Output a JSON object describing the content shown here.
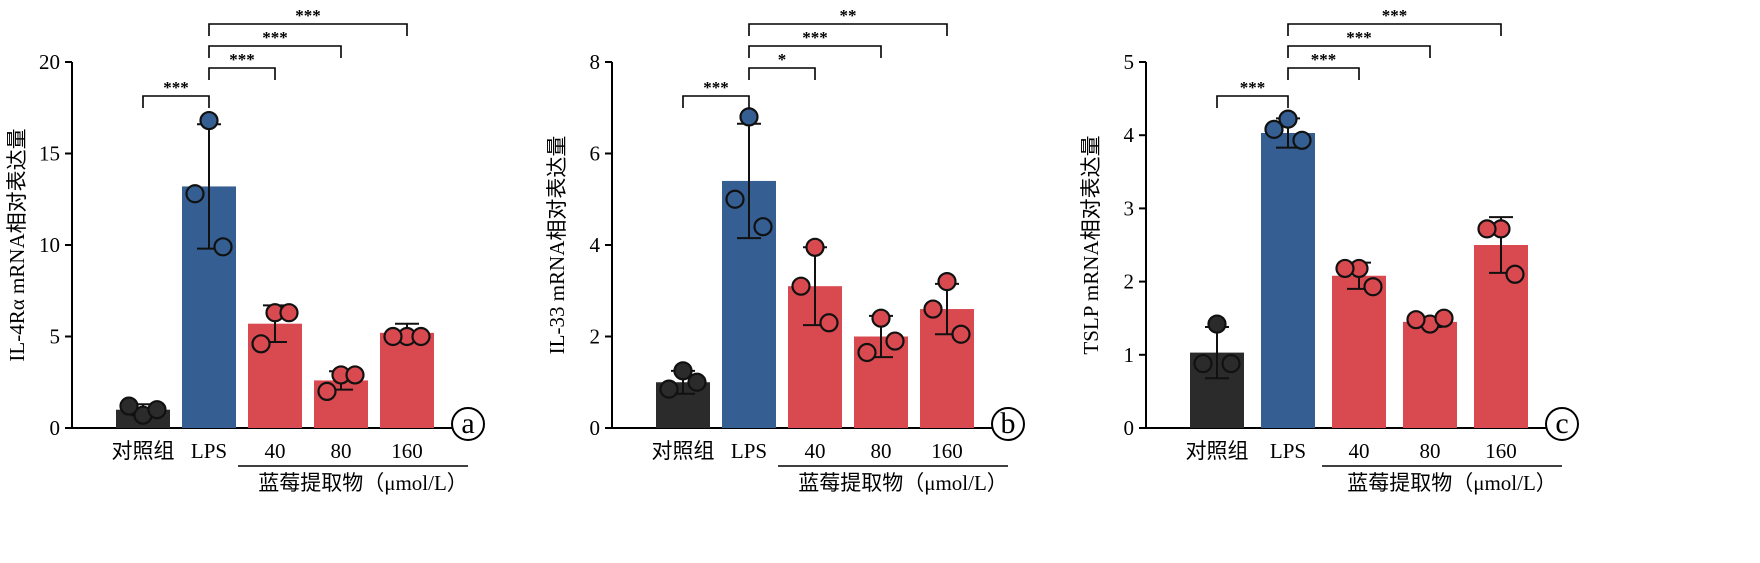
{
  "colors": {
    "control": "#2b2b2b",
    "lps": "#355f93",
    "extract": "#d94a50"
  },
  "group_label": "蓝莓提取物（μmol/L）",
  "chart_data": [
    {
      "type": "bar",
      "panel": "a",
      "ylabel": "IL-4Rα  mRNA相对表达量",
      "ylim": [
        0,
        20
      ],
      "yticks": [
        0,
        5,
        10,
        15,
        20
      ],
      "categories": [
        "对照组",
        "LPS",
        "40",
        "80",
        "160"
      ],
      "values": [
        1.0,
        13.2,
        5.7,
        2.6,
        5.2
      ],
      "errors": [
        0.3,
        3.4,
        1.0,
        0.5,
        0.5
      ],
      "points": [
        [
          0.7,
          1.2,
          1.0
        ],
        [
          16.8,
          12.8,
          9.9
        ],
        [
          6.3,
          4.6,
          6.3
        ],
        [
          2.9,
          2.0,
          2.9
        ],
        [
          5.0,
          5.0,
          5.0
        ]
      ],
      "bar_colors": [
        "control",
        "lps",
        "extract",
        "extract",
        "extract"
      ],
      "brackets": [
        {
          "from": 0,
          "to": 1,
          "label": "***"
        },
        {
          "from": 1,
          "to": 2,
          "label": "***"
        },
        {
          "from": 1,
          "to": 3,
          "label": "***"
        },
        {
          "from": 1,
          "to": 4,
          "label": "***"
        }
      ]
    },
    {
      "type": "bar",
      "panel": "b",
      "ylabel": "IL-33  mRNA相对表达量",
      "ylim": [
        0,
        8
      ],
      "yticks": [
        0,
        2,
        4,
        6,
        8
      ],
      "categories": [
        "对照组",
        "LPS",
        "40",
        "80",
        "160"
      ],
      "values": [
        1.0,
        5.4,
        3.1,
        2.0,
        2.6
      ],
      "errors": [
        0.25,
        1.25,
        0.85,
        0.45,
        0.55
      ],
      "points": [
        [
          1.25,
          0.85,
          1.0
        ],
        [
          6.8,
          5.0,
          4.4
        ],
        [
          3.95,
          3.1,
          2.3
        ],
        [
          2.4,
          1.65,
          1.9
        ],
        [
          3.2,
          2.6,
          2.05
        ]
      ],
      "bar_colors": [
        "control",
        "lps",
        "extract",
        "extract",
        "extract"
      ],
      "brackets": [
        {
          "from": 0,
          "to": 1,
          "label": "***"
        },
        {
          "from": 1,
          "to": 2,
          "label": "*"
        },
        {
          "from": 1,
          "to": 3,
          "label": "***"
        },
        {
          "from": 1,
          "to": 4,
          "label": "**"
        }
      ]
    },
    {
      "type": "bar",
      "panel": "c",
      "ylabel": "TSLP  mRNA相对表达量",
      "ylim": [
        0,
        5
      ],
      "yticks": [
        0,
        1,
        2,
        3,
        4,
        5
      ],
      "categories": [
        "对照组",
        "LPS",
        "40",
        "80",
        "160"
      ],
      "values": [
        1.03,
        4.03,
        2.08,
        1.45,
        2.5
      ],
      "errors": [
        0.35,
        0.2,
        0.18,
        0.07,
        0.38
      ],
      "points": [
        [
          1.42,
          0.88,
          0.88
        ],
        [
          4.22,
          4.08,
          3.93
        ],
        [
          2.18,
          2.18,
          1.93
        ],
        [
          1.42,
          1.48,
          1.5
        ],
        [
          2.72,
          2.72,
          2.1
        ]
      ],
      "bar_colors": [
        "control",
        "lps",
        "extract",
        "extract",
        "extract"
      ],
      "brackets": [
        {
          "from": 0,
          "to": 1,
          "label": "***"
        },
        {
          "from": 1,
          "to": 2,
          "label": "***"
        },
        {
          "from": 1,
          "to": 3,
          "label": "***"
        },
        {
          "from": 1,
          "to": 4,
          "label": "***"
        }
      ]
    }
  ]
}
